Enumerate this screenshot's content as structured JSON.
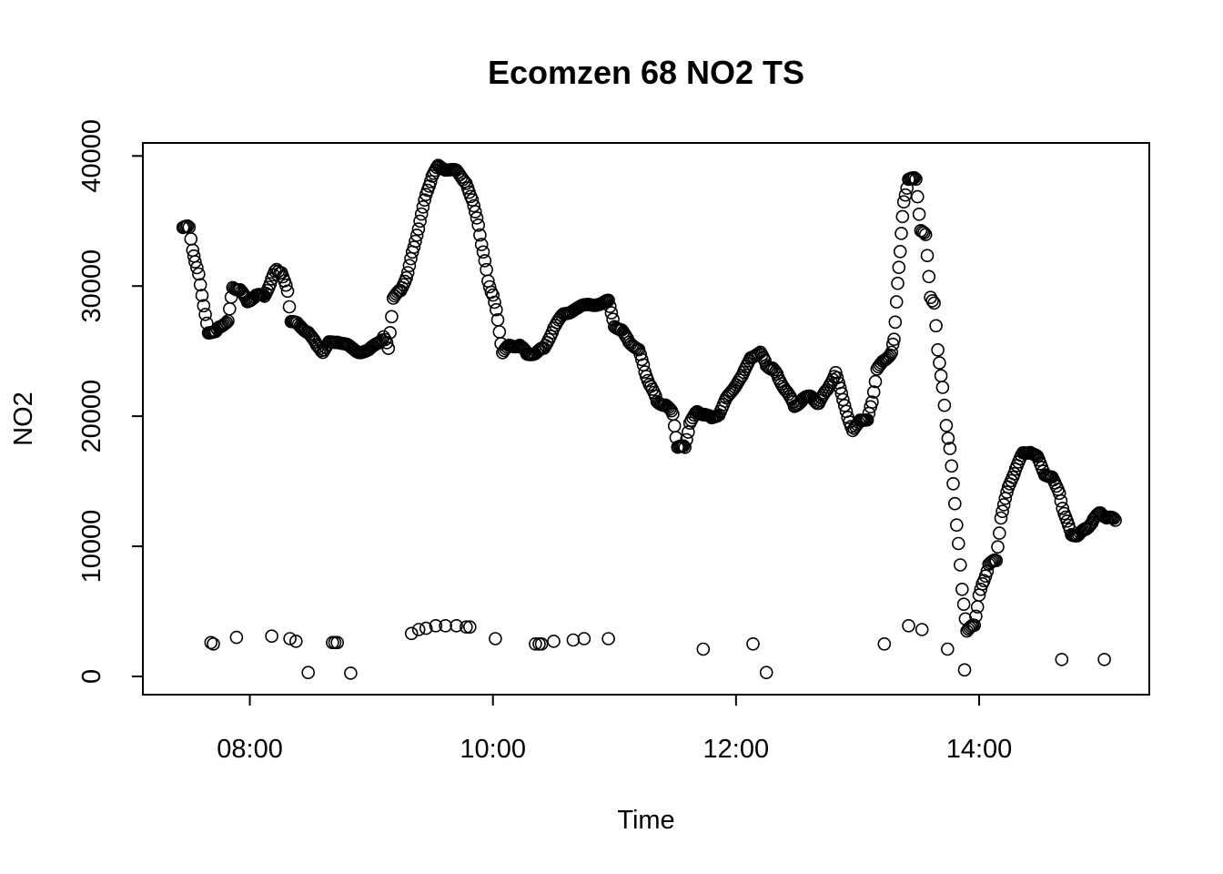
{
  "chart_data": {
    "type": "scatter",
    "title": "Ecomzen 68 NO2 TS",
    "xlabel": "Time",
    "ylabel": "NO2",
    "x_unit": "hours",
    "xlim": [
      7.12,
      15.4
    ],
    "ylim": [
      -1400,
      41000
    ],
    "x_ticks": [
      {
        "value": 8,
        "label": "08:00"
      },
      {
        "value": 10,
        "label": "10:00"
      },
      {
        "value": 12,
        "label": "12:00"
      },
      {
        "value": 14,
        "label": "14:00"
      }
    ],
    "y_ticks": [
      {
        "value": 0,
        "label": "0"
      },
      {
        "value": 10000,
        "label": "10000"
      },
      {
        "value": 20000,
        "label": "20000"
      },
      {
        "value": 30000,
        "label": "30000"
      },
      {
        "value": 40000,
        "label": "40000"
      }
    ],
    "grid": false,
    "legend": "none",
    "series": [
      {
        "name": "NO2",
        "marker": "open-circle",
        "anchors": [
          [
            7.45,
            34500
          ],
          [
            7.5,
            34500
          ],
          [
            7.53,
            32800
          ],
          [
            7.55,
            31800
          ],
          [
            7.58,
            31000
          ],
          [
            7.62,
            28400
          ],
          [
            7.66,
            26500
          ],
          [
            7.72,
            26400
          ],
          [
            7.76,
            27000
          ],
          [
            7.82,
            27200
          ],
          [
            7.86,
            30000
          ],
          [
            7.92,
            29600
          ],
          [
            7.98,
            28900
          ],
          [
            8.05,
            29200
          ],
          [
            8.12,
            29300
          ],
          [
            8.18,
            30500
          ],
          [
            8.22,
            31300
          ],
          [
            8.26,
            31000
          ],
          [
            8.31,
            29600
          ],
          [
            8.34,
            27300
          ],
          [
            8.4,
            27000
          ],
          [
            8.48,
            26500
          ],
          [
            8.55,
            25400
          ],
          [
            8.6,
            25000
          ],
          [
            8.65,
            25600
          ],
          [
            8.72,
            25800
          ],
          [
            8.8,
            25400
          ],
          [
            8.9,
            25000
          ],
          [
            8.98,
            25000
          ],
          [
            9.05,
            25700
          ],
          [
            9.1,
            26000
          ],
          [
            9.14,
            25300
          ],
          [
            9.18,
            29000
          ],
          [
            9.24,
            29700
          ],
          [
            9.3,
            31000
          ],
          [
            9.35,
            33000
          ],
          [
            9.4,
            35000
          ],
          [
            9.45,
            37000
          ],
          [
            9.5,
            38500
          ],
          [
            9.55,
            39200
          ],
          [
            9.62,
            39000
          ],
          [
            9.7,
            38800
          ],
          [
            9.78,
            38000
          ],
          [
            9.83,
            36500
          ],
          [
            9.88,
            34800
          ],
          [
            9.92,
            32500
          ],
          [
            9.96,
            30500
          ],
          [
            10.0,
            29200
          ],
          [
            10.04,
            27500
          ],
          [
            10.08,
            24800
          ],
          [
            10.14,
            25500
          ],
          [
            10.22,
            25400
          ],
          [
            10.28,
            24800
          ],
          [
            10.36,
            24900
          ],
          [
            10.42,
            25200
          ],
          [
            10.5,
            26800
          ],
          [
            10.58,
            27800
          ],
          [
            10.68,
            28300
          ],
          [
            10.78,
            28500
          ],
          [
            10.88,
            28700
          ],
          [
            10.95,
            28800
          ],
          [
            11.0,
            27000
          ],
          [
            11.06,
            26500
          ],
          [
            11.12,
            25800
          ],
          [
            11.2,
            25000
          ],
          [
            11.25,
            23500
          ],
          [
            11.3,
            22200
          ],
          [
            11.35,
            21200
          ],
          [
            11.42,
            20800
          ],
          [
            11.48,
            20200
          ],
          [
            11.52,
            17600
          ],
          [
            11.58,
            17600
          ],
          [
            11.62,
            19500
          ],
          [
            11.68,
            20300
          ],
          [
            11.74,
            20200
          ],
          [
            11.8,
            19800
          ],
          [
            11.86,
            20200
          ],
          [
            11.92,
            21300
          ],
          [
            11.98,
            22200
          ],
          [
            12.05,
            23000
          ],
          [
            12.12,
            24600
          ],
          [
            12.2,
            24800
          ],
          [
            12.25,
            24000
          ],
          [
            12.3,
            23600
          ],
          [
            12.35,
            23000
          ],
          [
            12.42,
            21800
          ],
          [
            12.48,
            20800
          ],
          [
            12.55,
            21300
          ],
          [
            12.62,
            21500
          ],
          [
            12.68,
            21000
          ],
          [
            12.75,
            22000
          ],
          [
            12.82,
            23400
          ],
          [
            12.88,
            21200
          ],
          [
            12.92,
            20000
          ],
          [
            12.96,
            18800
          ],
          [
            13.02,
            19800
          ],
          [
            13.08,
            19600
          ],
          [
            13.12,
            21200
          ],
          [
            13.16,
            23500
          ],
          [
            13.22,
            24400
          ],
          [
            13.28,
            24800
          ],
          [
            13.3,
            26000
          ],
          [
            13.32,
            28700
          ],
          [
            13.34,
            31500
          ],
          [
            13.36,
            34000
          ],
          [
            13.38,
            36500
          ],
          [
            13.42,
            38200
          ],
          [
            13.48,
            38200
          ],
          [
            13.52,
            34300
          ],
          [
            13.56,
            33900
          ],
          [
            13.6,
            29200
          ],
          [
            13.63,
            28600
          ],
          [
            13.66,
            25200
          ],
          [
            13.7,
            22100
          ],
          [
            13.73,
            19400
          ],
          [
            13.76,
            17400
          ],
          [
            13.8,
            13400
          ],
          [
            13.83,
            10100
          ],
          [
            13.86,
            6800
          ],
          [
            13.9,
            3400
          ],
          [
            13.96,
            4000
          ],
          [
            14.0,
            6200
          ],
          [
            14.04,
            7400
          ],
          [
            14.08,
            8600
          ],
          [
            14.14,
            8900
          ],
          [
            14.18,
            12200
          ],
          [
            14.24,
            14500
          ],
          [
            14.3,
            16000
          ],
          [
            14.36,
            17100
          ],
          [
            14.42,
            17300
          ],
          [
            14.48,
            16800
          ],
          [
            14.54,
            15600
          ],
          [
            14.6,
            15200
          ],
          [
            14.66,
            14200
          ],
          [
            14.7,
            12400
          ],
          [
            14.76,
            11000
          ],
          [
            14.82,
            10800
          ],
          [
            14.88,
            11400
          ],
          [
            14.94,
            12000
          ],
          [
            15.0,
            12600
          ],
          [
            15.06,
            12200
          ],
          [
            15.12,
            12000
          ]
        ],
        "points_low": [
          [
            7.68,
            2600
          ],
          [
            7.7,
            2500
          ],
          [
            7.89,
            3000
          ],
          [
            8.18,
            3100
          ],
          [
            8.33,
            2900
          ],
          [
            8.38,
            2700
          ],
          [
            8.48,
            300
          ],
          [
            8.68,
            2600
          ],
          [
            8.7,
            2600
          ],
          [
            8.72,
            2600
          ],
          [
            8.83,
            250
          ],
          [
            9.33,
            3300
          ],
          [
            9.39,
            3600
          ],
          [
            9.45,
            3700
          ],
          [
            9.53,
            3900
          ],
          [
            9.61,
            3900
          ],
          [
            9.7,
            3900
          ],
          [
            9.78,
            3800
          ],
          [
            9.81,
            3800
          ],
          [
            10.02,
            2900
          ],
          [
            10.35,
            2500
          ],
          [
            10.38,
            2500
          ],
          [
            10.4,
            2500
          ],
          [
            10.5,
            2700
          ],
          [
            10.66,
            2800
          ],
          [
            10.75,
            2900
          ],
          [
            10.95,
            2900
          ],
          [
            11.73,
            2100
          ],
          [
            12.14,
            2500
          ],
          [
            12.25,
            300
          ],
          [
            13.22,
            2500
          ],
          [
            13.42,
            3900
          ],
          [
            13.53,
            3600
          ],
          [
            13.74,
            2100
          ],
          [
            13.88,
            500
          ],
          [
            14.68,
            1300
          ],
          [
            15.03,
            1300
          ]
        ]
      }
    ]
  }
}
